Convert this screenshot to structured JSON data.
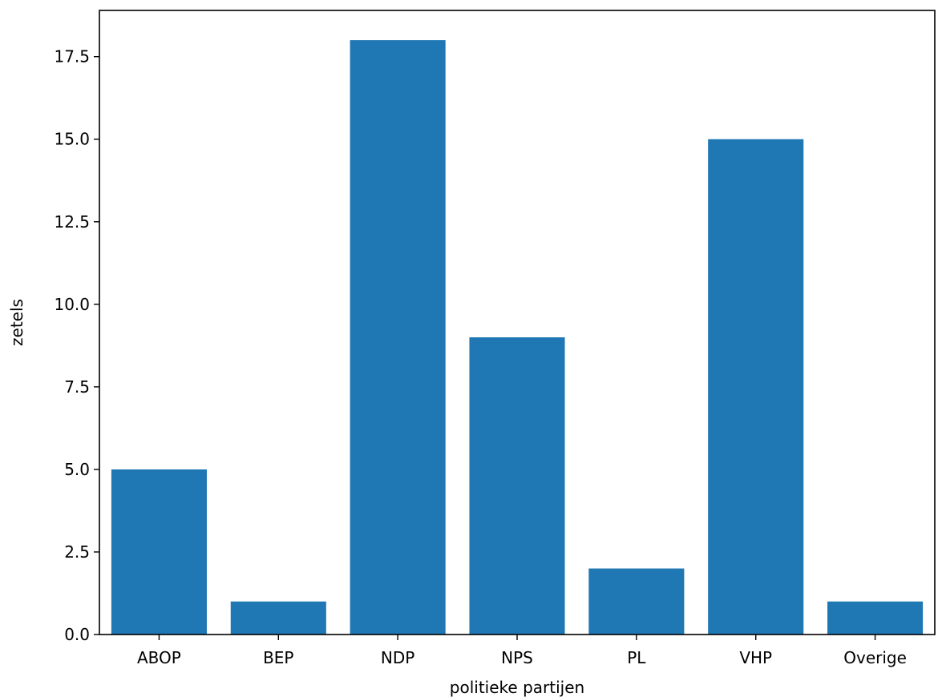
{
  "chart_data": {
    "type": "bar",
    "categories": [
      "ABOP",
      "BEP",
      "NDP",
      "NPS",
      "PL",
      "VHP",
      "Overige"
    ],
    "values": [
      5,
      1,
      18,
      9,
      2,
      15,
      1
    ],
    "xlabel": "politieke partijen",
    "ylabel": "zetels",
    "ylim": [
      0,
      18.9
    ],
    "yticks": [
      0.0,
      2.5,
      5.0,
      7.5,
      10.0,
      12.5,
      15.0,
      17.5
    ],
    "ytick_labels": [
      "0.0",
      "2.5",
      "5.0",
      "7.5",
      "10.0",
      "12.5",
      "15.0",
      "17.5"
    ],
    "bar_color": "#1f77b4",
    "grid": false,
    "legend": "none"
  }
}
